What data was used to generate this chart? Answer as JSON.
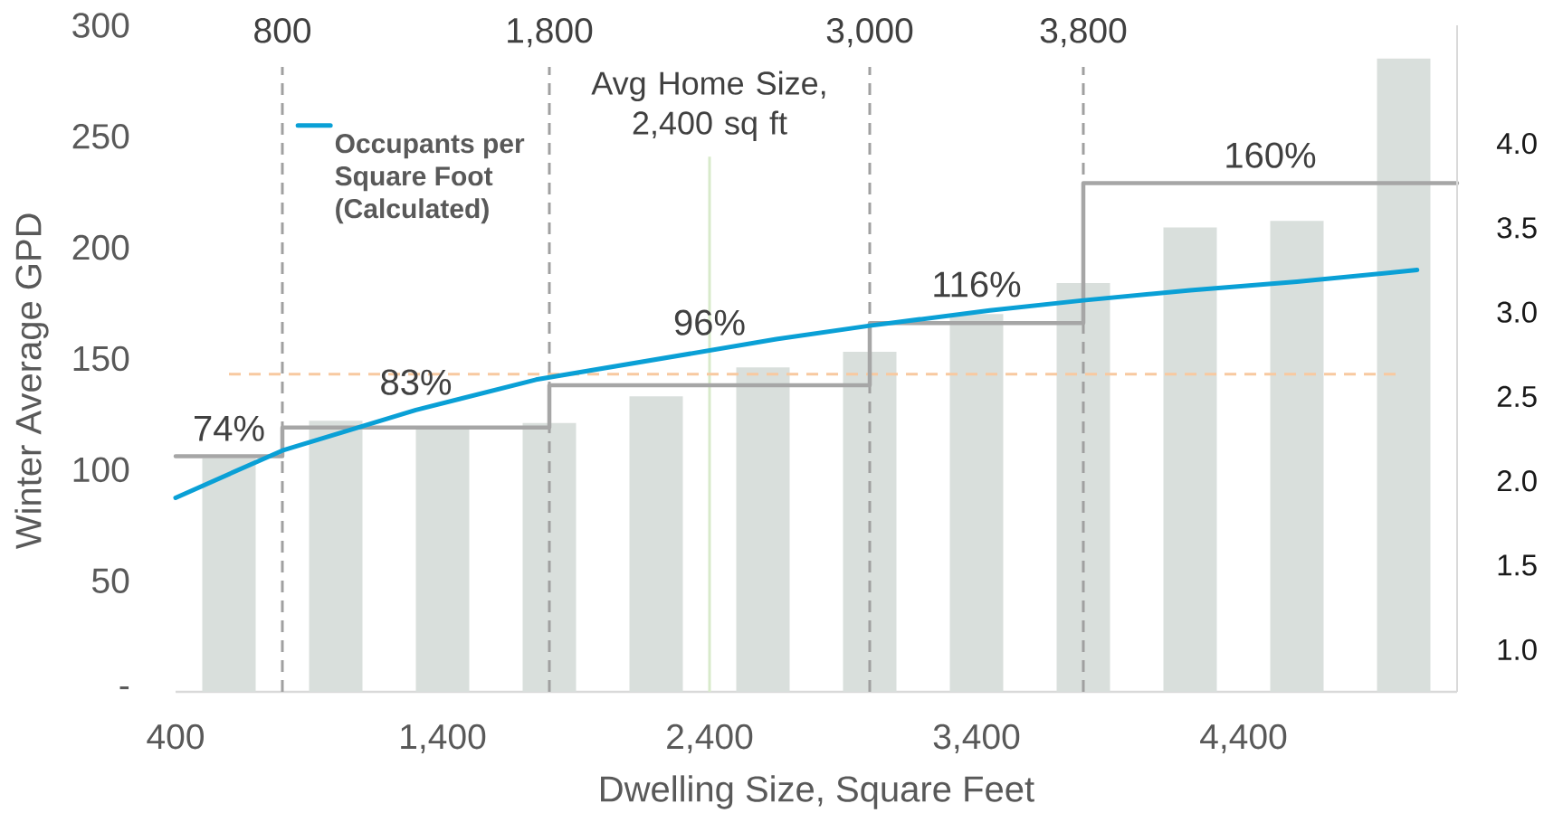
{
  "chart_data": {
    "type": "bar",
    "x": [
      600,
      1000,
      1400,
      1800,
      2200,
      2600,
      3000,
      3400,
      3800,
      4200,
      4600,
      5000
    ],
    "series": [
      {
        "color": "#d9dfdc",
        "values": [
          105,
          122,
          119,
          121,
          133,
          146,
          153,
          170,
          184,
          209,
          212,
          285
        ]
      },
      {
        "type": "step",
        "color": "#a6a6a6",
        "x": [
          400,
          800,
          1800,
          3000,
          3800,
          5200
        ],
        "values": [
          106,
          119,
          138,
          166,
          229,
          229
        ]
      },
      {
        "type": "line",
        "name": "Occupants per Square Foot (Calculated)",
        "color": "#0aa0d6",
        "axis": "y2",
        "x": [
          400,
          800,
          1300,
          1750,
          2200,
          2650,
          3000,
          3450,
          3800,
          4200,
          4600,
          5050
        ],
        "values": [
          1.9,
          2.18,
          2.42,
          2.6,
          2.72,
          2.84,
          2.92,
          3.01,
          3.07,
          3.13,
          3.18,
          3.25
        ]
      }
    ],
    "xlabel": "Dwelling Size, Square Feet",
    "ylabel": "Winter Average GPD",
    "xlim": [
      400,
      5200
    ],
    "xticks": [
      400,
      {
        "value": 1400,
        "label": "1,400"
      },
      {
        "value": 2400,
        "label": "2,400"
      },
      {
        "value": 3400,
        "label": "3,400"
      },
      {
        "value": 4400,
        "label": "4,400"
      }
    ],
    "ylim": [
      0,
      300
    ],
    "yticks": [
      {
        "value": 0,
        "label": "-"
      },
      50,
      100,
      150,
      200,
      250,
      300
    ],
    "y2lim": [
      0.75,
      4.7
    ],
    "y2ticks": [
      {
        "value": 1,
        "label": "1.0"
      },
      1.5,
      {
        "value": 2,
        "label": "2.0"
      },
      2.5,
      {
        "value": 3,
        "label": "3.0"
      },
      3.5,
      {
        "value": 4,
        "label": "4.0"
      }
    ],
    "ref_lines": [
      {
        "axis": "x",
        "value": 800,
        "label": "800",
        "color": "#a0a0a0",
        "line_style": "dashed"
      },
      {
        "axis": "x",
        "value": 1800,
        "label": "1,800",
        "color": "#a0a0a0",
        "line_style": "dashed"
      },
      {
        "axis": "x",
        "value": 2400,
        "label": "Avg Home Size, 2,400 sq ft",
        "color": "#d8eacb",
        "line_style": "solid"
      },
      {
        "axis": "x",
        "value": 3000,
        "label": "3,000",
        "color": "#a0a0a0",
        "line_style": "dashed"
      },
      {
        "axis": "x",
        "value": 3800,
        "label": "3,800",
        "color": "#a0a0a0",
        "line_style": "dashed"
      },
      {
        "axis": "y",
        "value": 143,
        "color": "#f8c9a0",
        "line_style": "dashed"
      }
    ],
    "annotations": [
      {
        "text": "74%",
        "x": 600,
        "y": 106
      },
      {
        "text": "83%",
        "x": 1300,
        "y": 119
      },
      {
        "text": "96%",
        "x": 2400,
        "y": 138
      },
      {
        "text": "116%",
        "x": 3400,
        "y": 166
      },
      {
        "text": "160%",
        "x": 4500,
        "y": 229
      }
    ],
    "legend": "top left",
    "marker": "none"
  }
}
